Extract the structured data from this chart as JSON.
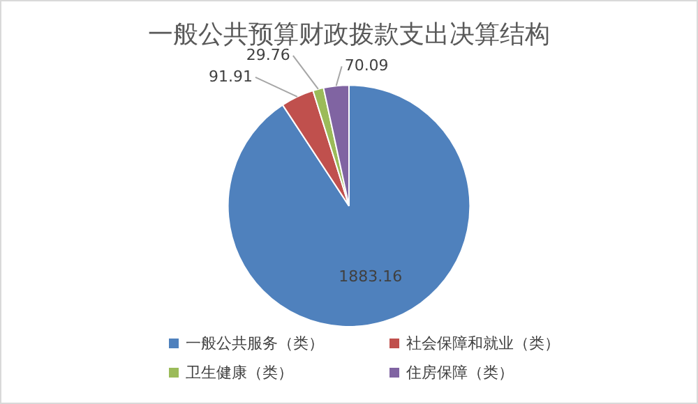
{
  "chart_data": {
    "type": "pie",
    "title": "一般公共预算财政拨款支出决算结构",
    "categories": [
      "一般公共服务（类）",
      "社会保障和就业（类）",
      "卫生健康（类）",
      "住房保障（类）"
    ],
    "values": [
      1883.16,
      91.91,
      29.76,
      70.09
    ],
    "colors": [
      "#4f81bd",
      "#c0504d",
      "#9bbb59",
      "#8064a2"
    ],
    "data_labels": true,
    "legend": "bottom"
  }
}
